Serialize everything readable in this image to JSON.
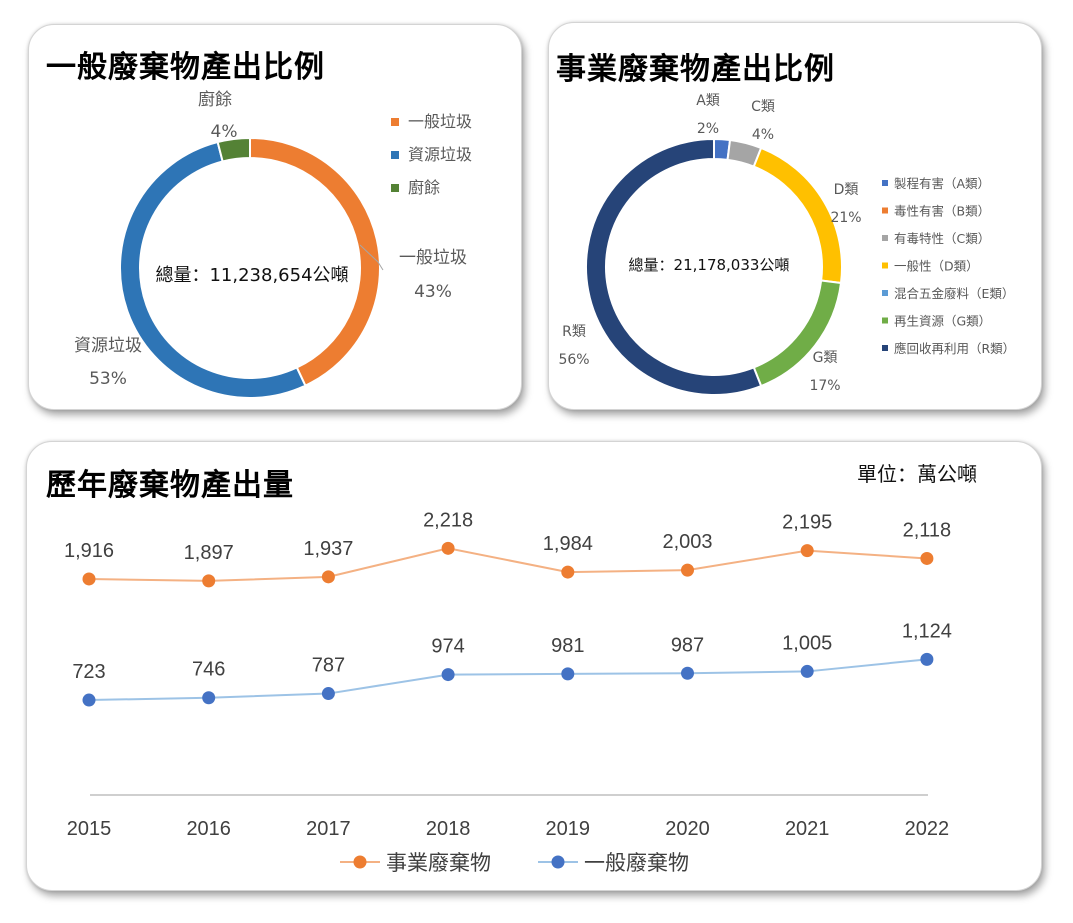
{
  "general": {
    "title": "一般廢棄物產出比例",
    "total_label": "總量：11,238,654公噸"
  },
  "business": {
    "title": "事業廢棄物產出比例",
    "total_label": "總量：21,178,033公噸"
  },
  "yearly": {
    "title": "歷年廢棄物產出量",
    "unit": "單位：萬公噸"
  },
  "colors": {
    "orange": "#ED7D31",
    "blue": "#4472C4",
    "ring_blue": "#2E75B6",
    "green": "#548235",
    "gray": "#A5A5A5",
    "yellow": "#FFC000",
    "light_blue": "#5B9BD5",
    "light_green": "#70AD47",
    "navy": "#264478"
  },
  "chart_data": [
    {
      "type": "pie",
      "donut": true,
      "title": "一般廢棄物產出比例",
      "categories": [
        "一般垃圾",
        "資源垃圾",
        "廚餘"
      ],
      "values": [
        43,
        53,
        4
      ],
      "labels": [
        {
          "name": "一般垃圾",
          "pct": "43%"
        },
        {
          "name": "資源垃圾",
          "pct": "53%"
        },
        {
          "name": "廚餘",
          "pct": "4%"
        }
      ],
      "legend": [
        "一般垃圾",
        "資源垃圾",
        "廚餘"
      ],
      "colors": [
        "#ED7D31",
        "#2E75B6",
        "#548235"
      ],
      "legend_position": "right"
    },
    {
      "type": "pie",
      "donut": true,
      "title": "事業廢棄物產出比例",
      "categories": [
        "A類",
        "B類",
        "C類",
        "D類",
        "E類",
        "G類",
        "R類"
      ],
      "values": [
        2,
        0,
        4,
        21,
        0,
        17,
        56
      ],
      "labels": [
        {
          "name": "A類",
          "pct": "2%"
        },
        {
          "name": "C類",
          "pct": "4%"
        },
        {
          "name": "D類",
          "pct": "21%"
        },
        {
          "name": "G類",
          "pct": "17%"
        },
        {
          "name": "R類",
          "pct": "56%"
        }
      ],
      "legend": [
        "製程有害（A類）",
        "毒性有害（B類）",
        "有毒特性（C類）",
        "一般性（D類）",
        "混合五金廢料（E類）",
        "再生資源（G類）",
        "應回收再利用（R類）"
      ],
      "colors": [
        "#4472C4",
        "#ED7D31",
        "#A5A5A5",
        "#FFC000",
        "#5B9BD5",
        "#70AD47",
        "#264478"
      ],
      "legend_position": "right"
    },
    {
      "type": "line",
      "title": "歷年廢棄物產出量",
      "x": [
        "2015",
        "2016",
        "2017",
        "2018",
        "2019",
        "2020",
        "2021",
        "2022"
      ],
      "series": [
        {
          "name": "事業廢棄物",
          "values": [
            1916,
            1897,
            1937,
            2218,
            1984,
            2003,
            2195,
            2118
          ],
          "labels": [
            "1,916",
            "1,897",
            "1,937",
            "2,218",
            "1,984",
            "2,003",
            "2,195",
            "2,118"
          ],
          "color": "#ED7D31"
        },
        {
          "name": "一般廢棄物",
          "values": [
            723,
            746,
            787,
            974,
            981,
            987,
            1005,
            1124
          ],
          "labels": [
            "723",
            "746",
            "787",
            "974",
            "981",
            "987",
            "1,005",
            "1,124"
          ],
          "color": "#4472C4"
        }
      ],
      "legend_position": "bottom",
      "grid": false
    }
  ]
}
